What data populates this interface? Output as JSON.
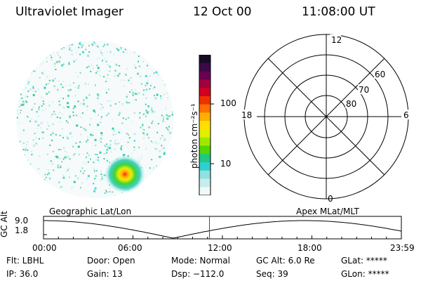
{
  "header": {
    "title": "Ultraviolet Imager",
    "date": "12 Oct 00",
    "time": "11:08:00 UT"
  },
  "colorbar": {
    "label": "photon cm⁻²s⁻¹",
    "ticks": [
      "100",
      "10"
    ],
    "colors": [
      "#1a0a2a",
      "#3a0a4a",
      "#6a0050",
      "#a00040",
      "#d00020",
      "#f03000",
      "#ff7000",
      "#ffb000",
      "#ffe000",
      "#e0f000",
      "#a0e800",
      "#50d800",
      "#20c880",
      "#30d0d0",
      "#90e0e0",
      "#c8ecec",
      "#f0f8f8"
    ]
  },
  "labels": {
    "left_panel": "Geographic Lat/Lon",
    "right_panel": "Apex MLat/MLT"
  },
  "polar": {
    "mlt_labels": {
      "top": "12",
      "left": "18",
      "right": "6",
      "bottom": "0"
    },
    "lat_labels": [
      "60",
      "70",
      "80"
    ]
  },
  "timeline": {
    "ylabel": "GC Alt",
    "yticks": [
      "9.0",
      "1.8"
    ],
    "xticks": [
      "00:00",
      "06:00",
      "12:00",
      "18:00",
      "23:59"
    ],
    "marker_hour": 11.13
  },
  "footer": {
    "flt": "Flt: LBHL",
    "ip": "IP: 36.0",
    "door": "Door: Open",
    "gain": "Gain: 13",
    "mode": "Mode: Normal",
    "dsp": "Dsp: −112.0",
    "gcalt": "GC Alt: 6.0 Re",
    "seq": "Seq: 39",
    "glat": "GLat: *****",
    "glon": "GLon: *****"
  }
}
